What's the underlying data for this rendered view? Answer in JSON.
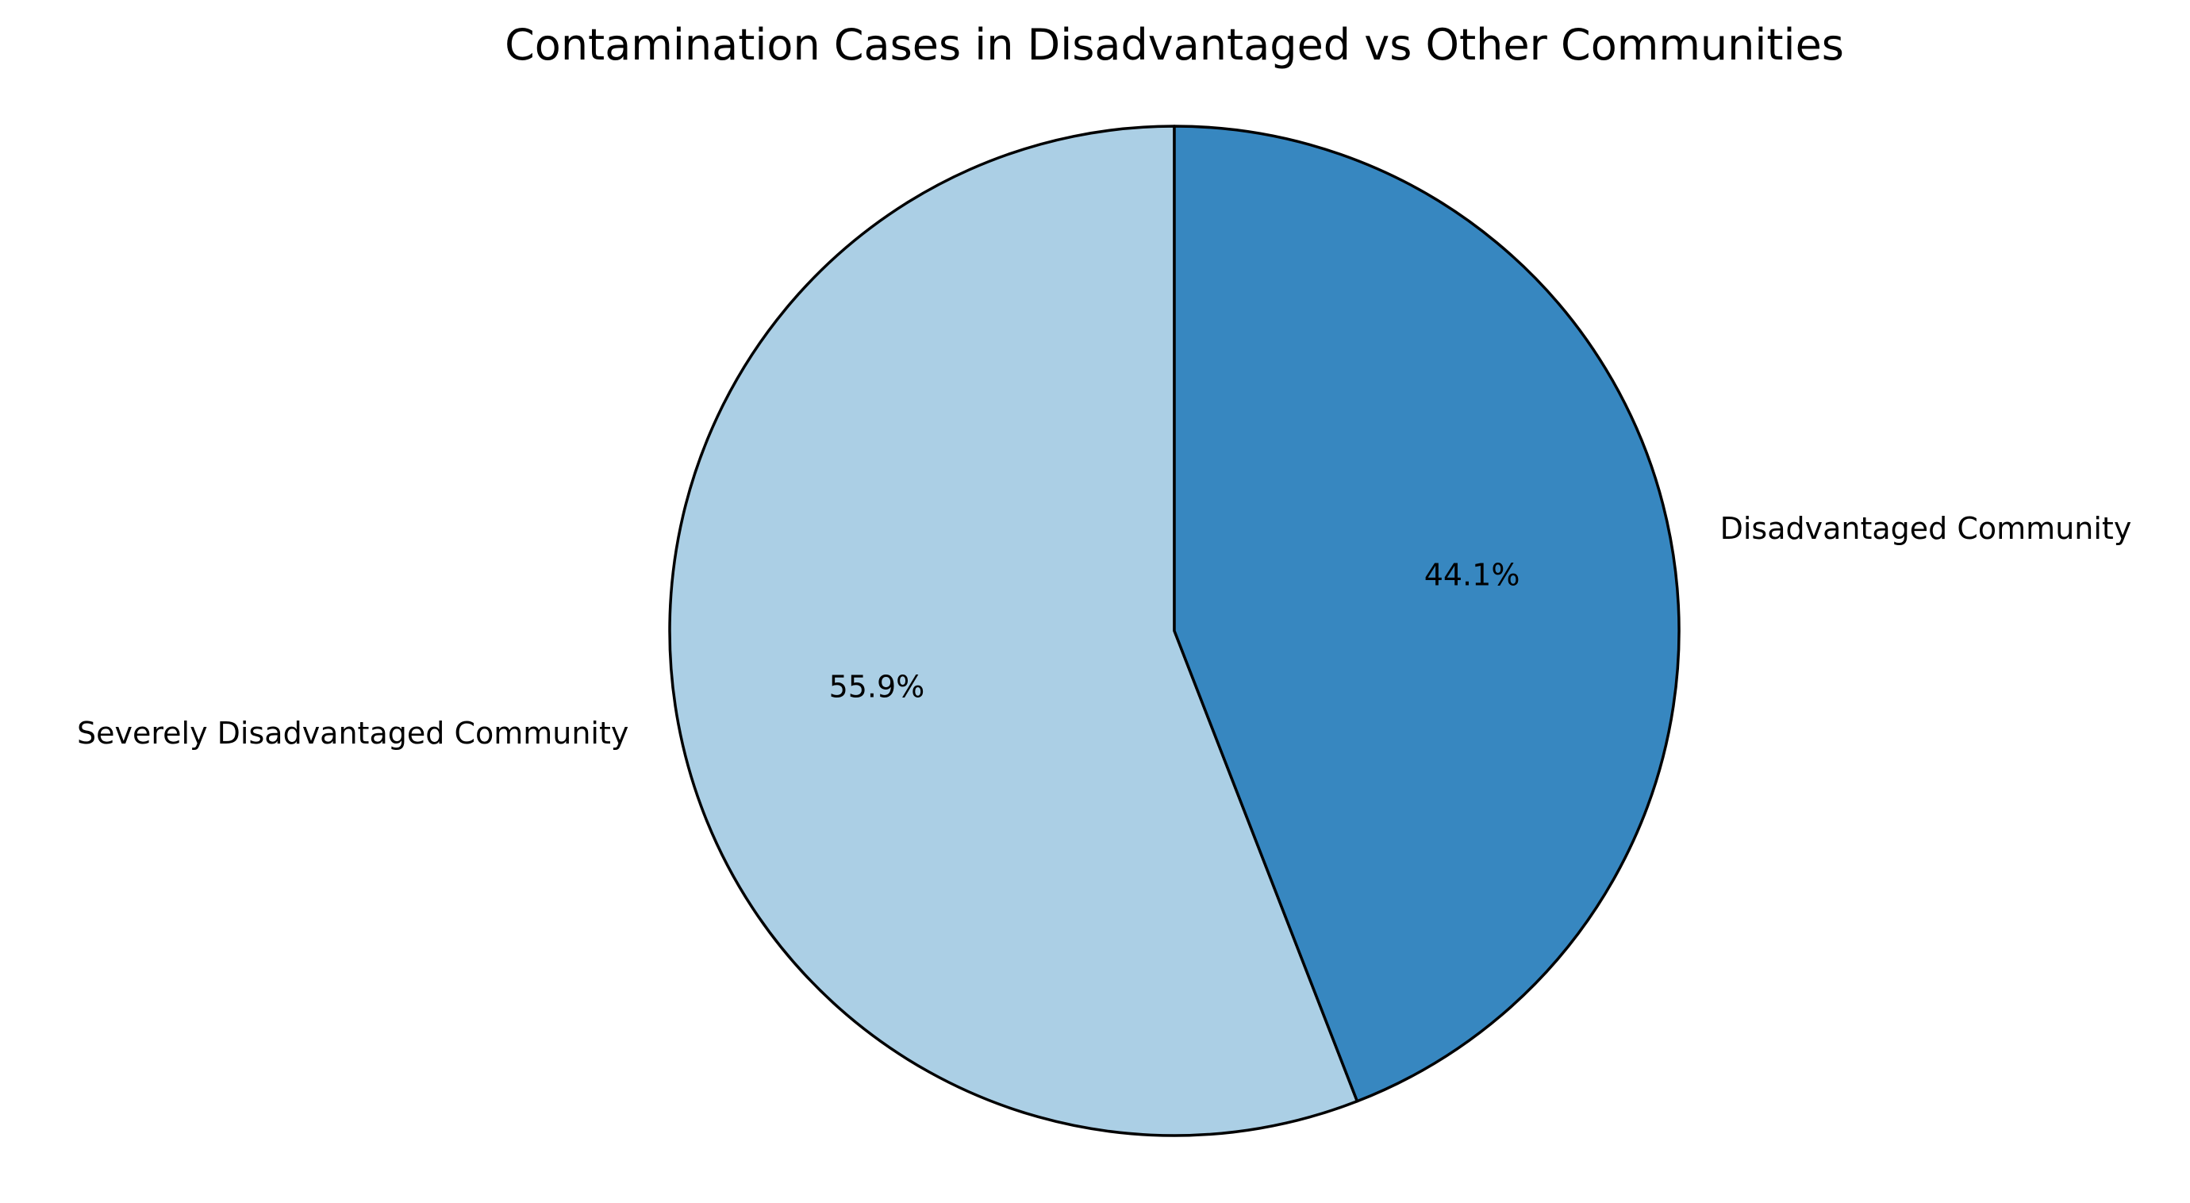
{
  "chart_data": {
    "type": "pie",
    "title": "Contamination Cases in Disadvantaged vs Other Communities",
    "start_angle_deg": 90,
    "direction": "counterclockwise",
    "slices": [
      {
        "label": "Severely Disadvantaged Community",
        "value": 55.9,
        "pct_label": "55.9%",
        "color": "#abcfe5"
      },
      {
        "label": "Disadvantaged Community",
        "value": 44.1,
        "pct_label": "44.1%",
        "color": "#3787c0"
      }
    ],
    "edge_color": "#000000",
    "legend": "none"
  }
}
